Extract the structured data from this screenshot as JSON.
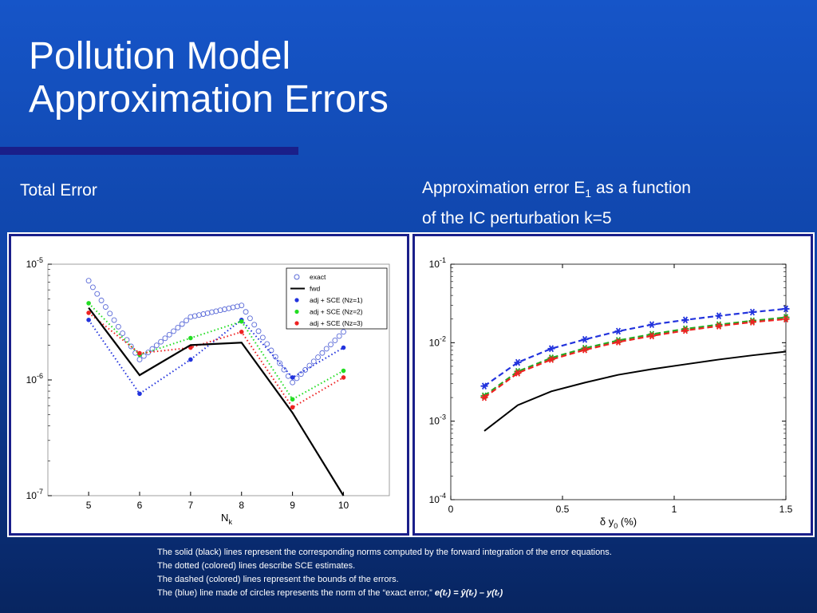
{
  "title": {
    "line1": "Pollution Model",
    "line2": "Approximation Errors"
  },
  "left_caption": "Total Error",
  "right_caption": {
    "part1": "Approximation error ",
    "symbol": "E",
    "subscript": "1",
    "part2": " as a function",
    "line2": "of the IC perturbation ",
    "kval": "k=5"
  },
  "notes": [
    "The solid (black) lines represent the corresponding norms computed by the forward integration of the error equations.",
    "The dotted (colored) lines describe SCE estimates.",
    "The dashed (colored) lines represent the bounds of the errors.",
    "The (blue) line made of circles represents the norm of the “exact error,”"
  ],
  "equation": "e(tᵣ) = ŷ(tᵣ) – y(tᵣ)",
  "chart_data": [
    {
      "type": "line",
      "title": "",
      "xlabel": "N_k",
      "ylabel": "",
      "yscale": "log",
      "x": [
        5,
        6,
        7,
        8,
        9,
        10
      ],
      "xlim": [
        4.2,
        10.9
      ],
      "ylim": [
        1e-07,
        1e-05
      ],
      "xticks": [
        "5",
        "6",
        "7",
        "8",
        "9",
        "10"
      ],
      "yticks": [
        "10-5",
        "10-6",
        "10-7"
      ],
      "legend_position": "top-right",
      "series": [
        {
          "name": "exact",
          "style": "circles",
          "color": "#5a6ad8",
          "values": [
            7.2e-06,
            1.5e-06,
            3.5e-06,
            4.4e-06,
            9.5e-07,
            2.6e-06
          ]
        },
        {
          "name": "fwd",
          "style": "solid",
          "color": "#000000",
          "values": [
            4.2e-06,
            1.1e-06,
            2e-06,
            2.1e-06,
            5.2e-07,
            1e-07
          ]
        },
        {
          "name": "adj + SCE (Nz=1)",
          "style": "dotted",
          "color": "#2233dd",
          "values": [
            3.3e-06,
            7.6e-07,
            1.5e-06,
            3.3e-06,
            1.05e-06,
            1.9e-06
          ]
        },
        {
          "name": "adj + SCE (Nz=2)",
          "style": "dotted",
          "color": "#22dd22",
          "values": [
            4.6e-06,
            1.65e-06,
            2.3e-06,
            3.2e-06,
            6.8e-07,
            1.2e-06
          ]
        },
        {
          "name": "adj + SCE (Nz=3)",
          "style": "dotted",
          "color": "#ee2222",
          "values": [
            3.8e-06,
            1.7e-06,
            1.9e-06,
            2.6e-06,
            5.8e-07,
            1.05e-06
          ]
        }
      ]
    },
    {
      "type": "line",
      "title": "",
      "xlabel": "δ y0 (%)",
      "ylabel": "",
      "yscale": "log",
      "x": [
        0.15,
        0.3,
        0.45,
        0.6,
        0.75,
        0.9,
        1.05,
        1.2,
        1.35,
        1.5
      ],
      "xlim": [
        0,
        1.5
      ],
      "ylim": [
        0.0001,
        0.1
      ],
      "xticks": [
        "0",
        "0.5",
        "1",
        "1.5"
      ],
      "yticks": [
        "10-1",
        "10-2",
        "10-3",
        "10-4"
      ],
      "series": [
        {
          "name": "",
          "style": "solid",
          "color": "#000000",
          "values": [
            0.00075,
            0.0016,
            0.0024,
            0.0031,
            0.0039,
            0.0046,
            0.0053,
            0.0061,
            0.0069,
            0.0077
          ]
        },
        {
          "name": "",
          "style": "dashed-star",
          "color": "#2233dd",
          "values": [
            0.0028,
            0.0056,
            0.0084,
            0.011,
            0.014,
            0.017,
            0.0195,
            0.022,
            0.0245,
            0.027
          ]
        },
        {
          "name": "",
          "style": "dashed-star",
          "color": "#22aa22",
          "values": [
            0.0021,
            0.0043,
            0.0064,
            0.0085,
            0.0107,
            0.0128,
            0.015,
            0.017,
            0.019,
            0.021
          ]
        },
        {
          "name": "",
          "style": "dashed-star",
          "color": "#ee2222",
          "values": [
            0.002,
            0.0041,
            0.0061,
            0.0081,
            0.0102,
            0.0122,
            0.0143,
            0.0163,
            0.0183,
            0.02
          ]
        }
      ]
    }
  ]
}
